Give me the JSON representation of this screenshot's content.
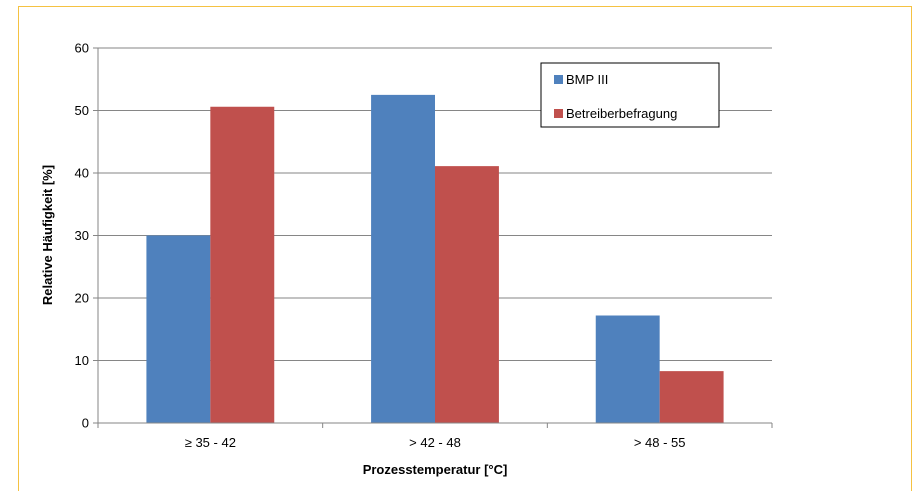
{
  "chart_data": {
    "type": "bar",
    "title": "",
    "xlabel": "Prozesstemperatur [°C]",
    "ylabel": "Relative Häufigkeit [%]",
    "categories": [
      "≥ 35 - 42",
      "> 42 - 48",
      "> 48 - 55"
    ],
    "series": [
      {
        "name": "BMP III",
        "values": [
          30.0,
          52.5,
          17.2
        ],
        "color": "#4f81bd"
      },
      {
        "name": "Betreiberbefragung",
        "values": [
          50.6,
          41.1,
          8.3
        ],
        "color": "#c0504d"
      }
    ],
    "ylim": [
      0,
      60
    ],
    "yticks": [
      "0",
      "10",
      "20",
      "30",
      "40",
      "50",
      "60"
    ],
    "grid": true,
    "legend_position": "top-right",
    "frame_color": "#f5c242"
  }
}
